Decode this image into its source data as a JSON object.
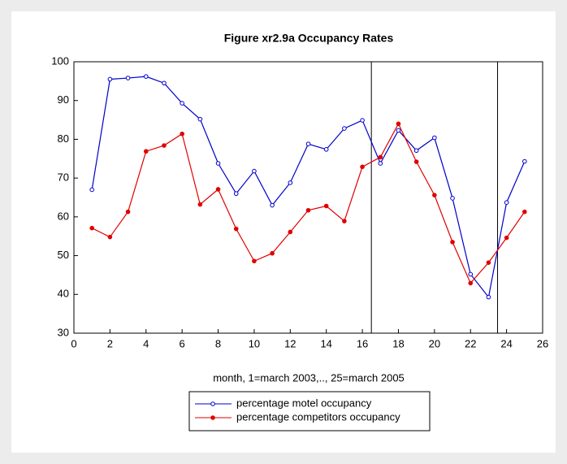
{
  "chart_data": {
    "type": "line",
    "title": "Figure xr2.9a Occupancy Rates",
    "x_label": "month, 1=march 2003,.., 25=march 2005",
    "x": [
      1,
      2,
      3,
      4,
      5,
      6,
      7,
      8,
      9,
      10,
      11,
      12,
      13,
      14,
      15,
      16,
      17,
      18,
      19,
      20,
      21,
      22,
      23,
      24,
      25
    ],
    "series": [
      {
        "name": "percentage motel occupancy",
        "color": "#0000cc",
        "marker": "open-circle",
        "values": [
          67,
          95.5,
          95.8,
          96.2,
          94.5,
          89.3,
          85.2,
          73.8,
          66,
          71.8,
          63,
          68.8,
          78.8,
          77.4,
          82.8,
          84.9,
          73.8,
          82.3,
          77.1,
          80.4,
          64.8,
          45.2,
          39.3,
          63.7,
          74.3
        ]
      },
      {
        "name": "percentage competitors occupancy",
        "color": "#e00000",
        "marker": "filled-circle",
        "values": [
          57.1,
          54.8,
          61.3,
          76.9,
          78.4,
          81.4,
          63.2,
          67.1,
          56.9,
          48.6,
          50.6,
          56.1,
          61.7,
          62.8,
          58.9,
          72.9,
          75.4,
          84,
          74.2,
          65.6,
          53.5,
          42.9,
          48.2,
          54.6,
          61.3
        ]
      }
    ],
    "vlines": [
      16.5,
      23.5
    ],
    "xlim": [
      0,
      26
    ],
    "xticks": [
      0,
      2,
      4,
      6,
      8,
      10,
      12,
      14,
      16,
      18,
      20,
      22,
      24,
      26
    ],
    "ylim": [
      30,
      100
    ],
    "yticks": [
      30,
      40,
      50,
      60,
      70,
      80,
      90,
      100
    ]
  }
}
